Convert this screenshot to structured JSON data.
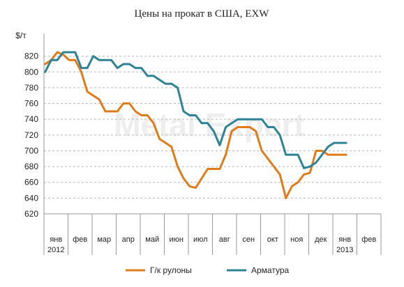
{
  "chart_data": {
    "type": "line",
    "title": "Цены на прокат в США, EXW",
    "ylabel": "$/т",
    "ylim": [
      620,
      840
    ],
    "yticks": [
      620,
      640,
      660,
      680,
      700,
      720,
      740,
      760,
      780,
      800,
      820
    ],
    "grid": true,
    "legend_position": "bottom",
    "categories": [
      "янв",
      "фев",
      "мар",
      "апр",
      "май",
      "июн",
      "июл",
      "авг",
      "сен",
      "окт",
      "ноя",
      "дек",
      "янв",
      "фев"
    ],
    "year_labels": [
      {
        "index": 0,
        "text": "2012"
      },
      {
        "index": 12,
        "text": "2013"
      }
    ],
    "x_unit": "month index (0 = янв 2012)",
    "series": [
      {
        "name": "Г/к рулоны",
        "color": "#e07b1a",
        "x": [
          0,
          0.25,
          0.5,
          0.75,
          1.0,
          1.25,
          1.5,
          1.75,
          2.0,
          2.25,
          2.5,
          2.75,
          3.0,
          3.25,
          3.5,
          3.75,
          4.0,
          4.25,
          4.5,
          4.75,
          5.0,
          5.25,
          5.5,
          5.75,
          6.0,
          6.25,
          6.5,
          6.75,
          7.0,
          7.25,
          7.5,
          7.75,
          8.0,
          8.25,
          8.5,
          8.75,
          9.0,
          9.25,
          9.5,
          9.75,
          10.0,
          10.25,
          10.5,
          10.75,
          11.0,
          11.25,
          11.5,
          11.75,
          12.0,
          12.25,
          12.5
        ],
        "values": [
          810,
          815,
          825,
          822,
          815,
          815,
          800,
          775,
          770,
          765,
          750,
          750,
          750,
          760,
          760,
          750,
          745,
          745,
          735,
          715,
          710,
          705,
          680,
          665,
          655,
          653,
          665,
          677,
          677,
          677,
          695,
          725,
          730,
          730,
          730,
          725,
          700,
          690,
          680,
          670,
          640,
          655,
          660,
          670,
          672,
          700,
          700,
          695,
          695,
          695,
          695
        ]
      },
      {
        "name": "Арматура",
        "color": "#2e8296",
        "x": [
          0,
          0.25,
          0.5,
          0.75,
          1.0,
          1.25,
          1.5,
          1.75,
          2.0,
          2.25,
          2.5,
          2.75,
          3.0,
          3.25,
          3.5,
          3.75,
          4.0,
          4.25,
          4.5,
          4.75,
          5.0,
          5.25,
          5.5,
          5.75,
          6.0,
          6.25,
          6.5,
          6.75,
          7.0,
          7.25,
          7.5,
          7.75,
          8.0,
          8.25,
          8.5,
          8.75,
          9.0,
          9.25,
          9.5,
          9.75,
          10.0,
          10.25,
          10.5,
          10.75,
          11.0,
          11.25,
          11.5,
          11.75,
          12.0,
          12.25,
          12.5
        ],
        "values": [
          800,
          815,
          815,
          825,
          825,
          825,
          805,
          805,
          820,
          815,
          815,
          815,
          805,
          810,
          810,
          805,
          805,
          795,
          795,
          790,
          785,
          785,
          780,
          750,
          745,
          745,
          735,
          735,
          725,
          707,
          730,
          735,
          740,
          740,
          740,
          740,
          740,
          730,
          730,
          720,
          695,
          695,
          695,
          678,
          680,
          685,
          695,
          705,
          710,
          710,
          710
        ]
      }
    ]
  },
  "watermark": "Metal Expert"
}
